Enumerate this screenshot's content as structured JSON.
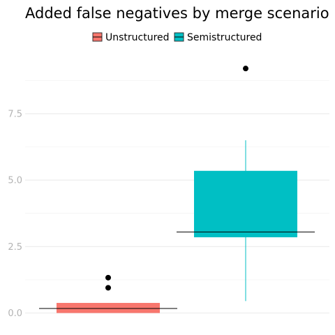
{
  "chart_data": {
    "type": "boxplot",
    "title": "Added false negatives by merge scenario",
    "xlabel": "",
    "ylabel": "",
    "ylim": [
      -0.15,
      9.7
    ],
    "y_ticks": [
      "0.0",
      "2.5",
      "5.0",
      "7.5"
    ],
    "y_tick_values": [
      0,
      2.5,
      5,
      7.5
    ],
    "grid": true,
    "legend_position": "top",
    "series": [
      {
        "name": "Unstructured",
        "color": "#F8766D",
        "stats": {
          "min": 0,
          "q1": 0,
          "median": 0.17,
          "q3": 0.38,
          "max": 0.38
        },
        "outliers": [
          0.95,
          1.33
        ]
      },
      {
        "name": "Semistructured",
        "color": "#00BFC4",
        "stats": {
          "min": 0.45,
          "q1": 2.85,
          "median": 3.05,
          "q3": 5.35,
          "max": 6.5
        },
        "outliers": [
          9.2
        ]
      }
    ]
  }
}
